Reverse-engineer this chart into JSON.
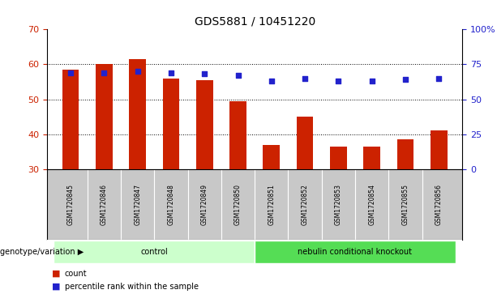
{
  "title": "GDS5881 / 10451220",
  "samples": [
    "GSM1720845",
    "GSM1720846",
    "GSM1720847",
    "GSM1720848",
    "GSM1720849",
    "GSM1720850",
    "GSM1720851",
    "GSM1720852",
    "GSM1720853",
    "GSM1720854",
    "GSM1720855",
    "GSM1720856"
  ],
  "bar_values": [
    58.5,
    60.0,
    61.5,
    56.0,
    55.5,
    49.5,
    37.0,
    45.0,
    36.5,
    36.5,
    38.5,
    41.0
  ],
  "bar_bottom": 30,
  "percentile_values": [
    69,
    69,
    70,
    69,
    68,
    67,
    63,
    65,
    63,
    63,
    64,
    65
  ],
  "bar_color": "#cc2200",
  "dot_color": "#2222cc",
  "ylim_left": [
    30,
    70
  ],
  "ylim_right": [
    0,
    100
  ],
  "yticks_left": [
    30,
    40,
    50,
    60,
    70
  ],
  "yticks_right": [
    0,
    25,
    50,
    75,
    100
  ],
  "ytick_labels_right": [
    "0",
    "25",
    "50",
    "75",
    "100%"
  ],
  "grid_values": [
    40,
    50,
    60
  ],
  "groups": [
    {
      "label": "control",
      "start": 0,
      "end": 5,
      "color": "#ccffcc"
    },
    {
      "label": "nebulin conditional knockout",
      "start": 6,
      "end": 11,
      "color": "#55dd55"
    }
  ],
  "group_row_label": "genotype/variation",
  "legend_count_label": "count",
  "legend_pct_label": "percentile rank within the sample",
  "bg_color": "#ffffff",
  "plot_bg_color": "#ffffff",
  "tick_label_area_color": "#c8c8c8",
  "bar_width": 0.5,
  "n_samples": 12
}
